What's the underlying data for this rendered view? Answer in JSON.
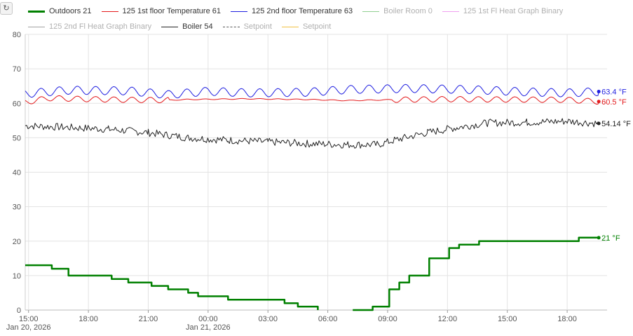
{
  "toolbar": {
    "refresh_icon": "refresh-icon",
    "refresh_glyph": "↻"
  },
  "legend": [
    {
      "label": "Outdoors 21",
      "color": "#008000",
      "style": "thick",
      "visible": true
    },
    {
      "label": "125 1st floor Temperature 61",
      "color": "#e41a1c",
      "style": "solid",
      "visible": true
    },
    {
      "label": "125 2nd floor Temperature 63",
      "color": "#1f1fe0",
      "style": "solid",
      "visible": true
    },
    {
      "label": "Boiler Room 0",
      "color": "#90d090",
      "style": "solid",
      "visible": false
    },
    {
      "label": "125 1st Fl Heat Graph Binary",
      "color": "#f0a0f0",
      "style": "solid",
      "visible": false
    },
    {
      "label": "125 2nd Fl Heat Graph Binary",
      "color": "#a0a0a0",
      "style": "solid",
      "visible": false
    },
    {
      "label": "Boiler 54",
      "color": "#222222",
      "style": "solid",
      "visible": true
    },
    {
      "label": "Setpoint",
      "color": "#555555",
      "style": "dashed",
      "visible": false
    },
    {
      "label": "Setpoint",
      "color": "#f0c040",
      "style": "solid",
      "visible": false
    }
  ],
  "chart_data": {
    "type": "line",
    "ylim": [
      0,
      80
    ],
    "yticks": [
      "0",
      "10",
      "20",
      "30",
      "40",
      "50",
      "60",
      "70",
      "80"
    ],
    "xlim": [
      "2026-01-20 14:50",
      "2026-01-21 20:00"
    ],
    "xticks": [
      {
        "value": "2026-01-20 15:00",
        "label": "15:00",
        "sublabel": "Jan 20, 2026"
      },
      {
        "value": "2026-01-20 18:00",
        "label": "18:00"
      },
      {
        "value": "2026-01-20 21:00",
        "label": "21:00"
      },
      {
        "value": "2026-01-21 00:00",
        "label": "00:00",
        "sublabel": "Jan 21, 2026"
      },
      {
        "value": "2026-01-21 03:00",
        "label": "03:00"
      },
      {
        "value": "2026-01-21 06:00",
        "label": "06:00"
      },
      {
        "value": "2026-01-21 09:00",
        "label": "09:00"
      },
      {
        "value": "2026-01-21 12:00",
        "label": "12:00"
      },
      {
        "value": "2026-01-21 15:00",
        "label": "15:00"
      },
      {
        "value": "2026-01-21 18:00",
        "label": "18:00"
      }
    ],
    "grid": true,
    "series": [
      {
        "name": "Outdoors 21",
        "color": "#008000",
        "step": true,
        "points": [
          [
            "2026-01-20 14:50",
            13
          ],
          [
            "2026-01-20 16:10",
            12
          ],
          [
            "2026-01-20 17:00",
            10
          ],
          [
            "2026-01-20 19:10",
            9
          ],
          [
            "2026-01-20 20:00",
            8
          ],
          [
            "2026-01-20 21:10",
            7
          ],
          [
            "2026-01-20 22:00",
            6
          ],
          [
            "2026-01-20 23:00",
            5
          ],
          [
            "2026-01-20 23:30",
            4
          ],
          [
            "2026-01-21 01:00",
            3
          ],
          [
            "2026-01-21 03:50",
            2
          ],
          [
            "2026-01-21 04:30",
            1
          ],
          [
            "2026-01-21 05:30",
            0
          ],
          [
            "2026-01-21 06:05",
            null
          ],
          [
            "2026-01-21 07:15",
            0
          ],
          [
            "2026-01-21 08:15",
            1
          ],
          [
            "2026-01-21 09:05",
            6
          ],
          [
            "2026-01-21 09:35",
            8
          ],
          [
            "2026-01-21 10:05",
            10
          ],
          [
            "2026-01-21 11:05",
            15
          ],
          [
            "2026-01-21 12:05",
            18
          ],
          [
            "2026-01-21 12:35",
            19
          ],
          [
            "2026-01-21 13:35",
            20
          ],
          [
            "2026-01-21 18:35",
            21
          ],
          [
            "2026-01-21 19:35",
            21
          ]
        ],
        "end_label": "21 °F"
      },
      {
        "name": "125 1st floor Temperature 61",
        "color": "#e41a1c",
        "points": [
          [
            "2026-01-20 14:50",
            60.3
          ],
          [
            "2026-01-20 16:00",
            61.5
          ],
          [
            "2026-01-20 18:00",
            61.2
          ],
          [
            "2026-01-20 20:00",
            61.0
          ],
          [
            "2026-01-20 22:00",
            60.9
          ],
          [
            "2026-01-20 23:00",
            61.1
          ],
          [
            "2026-01-21 02:00",
            61.3
          ],
          [
            "2026-01-21 05:00",
            61.1
          ],
          [
            "2026-01-21 07:00",
            60.8
          ],
          [
            "2026-01-21 09:00",
            61.0
          ],
          [
            "2026-01-21 12:00",
            61.2
          ],
          [
            "2026-01-21 15:00",
            61.1
          ],
          [
            "2026-01-21 18:00",
            61.0
          ],
          [
            "2026-01-21 19:35",
            60.5
          ]
        ],
        "end_label": "60.5 °F"
      },
      {
        "name": "125 2nd floor Temperature 63",
        "color": "#1f1fe0",
        "points": [
          [
            "2026-01-20 14:50",
            62.8
          ],
          [
            "2026-01-20 17:00",
            63.8
          ],
          [
            "2026-01-20 20:00",
            63.6
          ],
          [
            "2026-01-20 22:00",
            62.5
          ],
          [
            "2026-01-21 00:00",
            63.5
          ],
          [
            "2026-01-21 02:00",
            63.0
          ],
          [
            "2026-01-21 05:00",
            63.2
          ],
          [
            "2026-01-21 07:00",
            64.0
          ],
          [
            "2026-01-21 10:00",
            64.3
          ],
          [
            "2026-01-21 13:00",
            64.0
          ],
          [
            "2026-01-21 16:00",
            63.3
          ],
          [
            "2026-01-21 18:00",
            63.0
          ],
          [
            "2026-01-21 19:35",
            63.4
          ]
        ],
        "end_label": "63.4 °F"
      },
      {
        "name": "Boiler 54",
        "color": "#222222",
        "points": [
          [
            "2026-01-20 14:50",
            53.5
          ],
          [
            "2026-01-20 17:00",
            53.0
          ],
          [
            "2026-01-20 19:00",
            52.5
          ],
          [
            "2026-01-20 21:00",
            51.5
          ],
          [
            "2026-01-20 23:00",
            50.0
          ],
          [
            "2026-01-21 01:00",
            49.3
          ],
          [
            "2026-01-21 03:00",
            48.8
          ],
          [
            "2026-01-21 05:00",
            48.3
          ],
          [
            "2026-01-21 07:00",
            48.0
          ],
          [
            "2026-01-21 08:30",
            48.0
          ],
          [
            "2026-01-21 09:30",
            49.5
          ],
          [
            "2026-01-21 11:00",
            51.5
          ],
          [
            "2026-01-21 12:30",
            53.0
          ],
          [
            "2026-01-21 14:00",
            54.3
          ],
          [
            "2026-01-21 16:00",
            54.5
          ],
          [
            "2026-01-21 18:00",
            54.8
          ],
          [
            "2026-01-21 19:35",
            54.14
          ]
        ],
        "end_label": "54.14 °F"
      }
    ]
  }
}
